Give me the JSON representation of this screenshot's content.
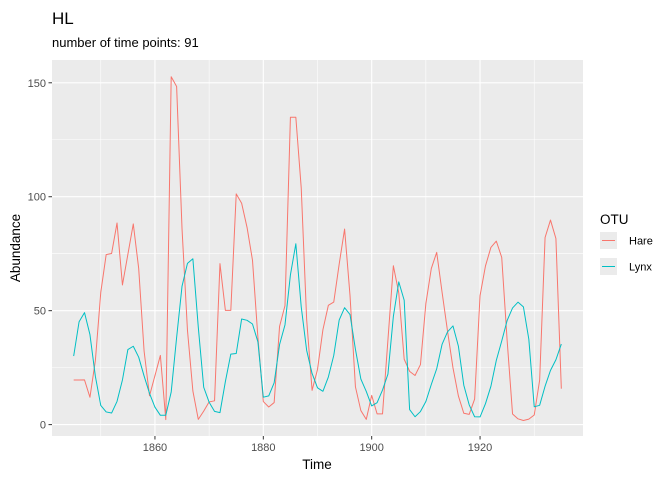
{
  "chart_data": {
    "type": "line",
    "title": "HL",
    "subtitle": "number of time points: 91",
    "xlabel": "Time",
    "ylabel": "Abundance",
    "xlim": [
      1841,
      1939
    ],
    "ylim": [
      -5,
      160
    ],
    "x_ticks": [
      1860,
      1880,
      1900,
      1920
    ],
    "y_ticks": [
      0,
      50,
      100,
      150
    ],
    "grid": true,
    "background": "#ebebeb",
    "legend": {
      "title": "OTU",
      "position": "right"
    },
    "x": [
      1845,
      1846,
      1847,
      1848,
      1849,
      1850,
      1851,
      1852,
      1853,
      1854,
      1855,
      1856,
      1857,
      1858,
      1859,
      1860,
      1861,
      1862,
      1863,
      1864,
      1865,
      1866,
      1867,
      1868,
      1869,
      1870,
      1871,
      1872,
      1873,
      1874,
      1875,
      1876,
      1877,
      1878,
      1879,
      1880,
      1881,
      1882,
      1883,
      1884,
      1885,
      1886,
      1887,
      1888,
      1889,
      1890,
      1891,
      1892,
      1893,
      1894,
      1895,
      1896,
      1897,
      1898,
      1899,
      1900,
      1901,
      1902,
      1903,
      1904,
      1905,
      1906,
      1907,
      1908,
      1909,
      1910,
      1911,
      1912,
      1913,
      1914,
      1915,
      1916,
      1917,
      1918,
      1919,
      1920,
      1921,
      1922,
      1923,
      1924,
      1925,
      1926,
      1927,
      1928,
      1929,
      1930,
      1931,
      1932,
      1933,
      1934,
      1935
    ],
    "series": [
      {
        "name": "Hare",
        "color": "#f8766d",
        "values": [
          19.58,
          19.6,
          19.61,
          11.99,
          28.04,
          58.0,
          74.6,
          75.09,
          88.48,
          61.28,
          74.67,
          88.06,
          68.51,
          32.19,
          12.64,
          21.49,
          30.35,
          2.18,
          152.65,
          148.36,
          85.81,
          41.41,
          14.75,
          2.28,
          5.91,
          9.95,
          10.44,
          70.64,
          50.12,
          50.13,
          101.25,
          97.12,
          86.51,
          72.17,
          38.32,
          10.11,
          7.74,
          9.67,
          43.12,
          52.21,
          134.85,
          134.86,
          103.79,
          46.1,
          15.03,
          24.2,
          41.65,
          52.34,
          53.78,
          70.4,
          85.81,
          56.69,
          16.59,
          6.16,
          2.3,
          12.82,
          4.72,
          4.73,
          37.22,
          69.72,
          57.78,
          28.68,
          23.37,
          21.54,
          26.34,
          53.1,
          68.48,
          75.58,
          57.92,
          40.97,
          24.95,
          12.59,
          4.97,
          4.5,
          11.21,
          56.6,
          69.63,
          77.74,
          80.53,
          73.38,
          36.93,
          4.64,
          2.54,
          1.8,
          2.39,
          4.23,
          19.52,
          82.11,
          89.76,
          81.66,
          15.76
        ]
      },
      {
        "name": "Lynx",
        "color": "#00bfc4",
        "values": [
          30.09,
          45.15,
          49.15,
          39.52,
          21.23,
          8.42,
          5.56,
          5.08,
          10.17,
          19.6,
          32.91,
          34.38,
          29.59,
          21.3,
          13.69,
          7.65,
          4.08,
          4.09,
          14.33,
          38.22,
          60.78,
          70.77,
          72.77,
          42.68,
          16.39,
          9.83,
          5.8,
          5.26,
          18.91,
          30.95,
          31.18,
          46.34,
          45.77,
          44.15,
          36.33,
          12.03,
          12.6,
          18.34,
          35.14,
          43.77,
          65.69,
          79.35,
          51.65,
          32.59,
          22.45,
          16.16,
          14.63,
          20.87,
          30.35,
          45.87,
          51.3,
          48.31,
          33.05,
          20.01,
          14.54,
          8.2,
          9.6,
          15.16,
          22.17,
          47.45,
          62.64,
          54.59,
          6.61,
          3.45,
          5.73,
          10.13,
          17.61,
          24.52,
          35.31,
          40.73,
          43.31,
          34.45,
          17.28,
          8.64,
          3.45,
          3.38,
          9.17,
          16.8,
          28.17,
          36.7,
          45.68,
          51.2,
          53.73,
          51.69,
          37.49,
          7.81,
          8.47,
          16.83,
          23.79,
          28.47,
          35.33
        ]
      }
    ]
  }
}
